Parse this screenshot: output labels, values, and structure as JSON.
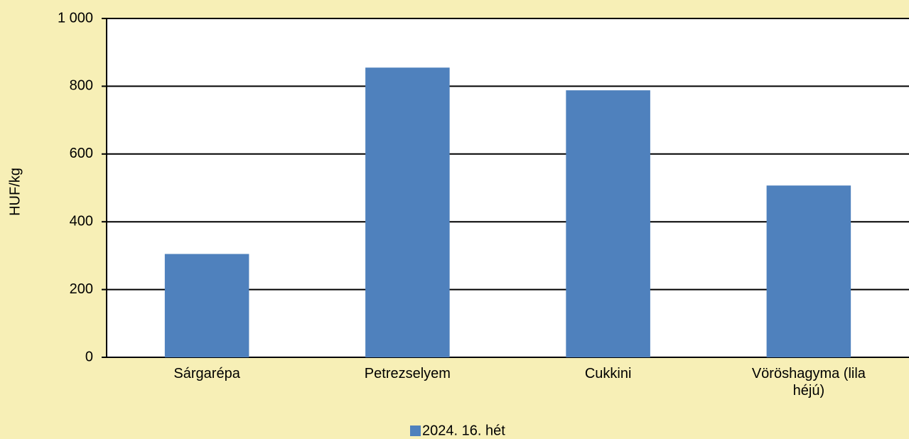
{
  "chart_data": {
    "type": "bar",
    "y_axis_label": "HUF/kg",
    "categories": [
      "Sárgarépa",
      "Petrezselyem",
      "Cukkini",
      "Vöröshagyma (lila héjú)"
    ],
    "series": [
      {
        "name": "2024. 16. hét",
        "color": "#4f81bd",
        "values": [
          305,
          855,
          788,
          507
        ]
      }
    ],
    "ylim": [
      0,
      1000
    ],
    "yticks": [
      0,
      200,
      400,
      600,
      800,
      {
        "value": 1000,
        "label": "1 000"
      }
    ],
    "grid": true,
    "legend": "bottom"
  }
}
